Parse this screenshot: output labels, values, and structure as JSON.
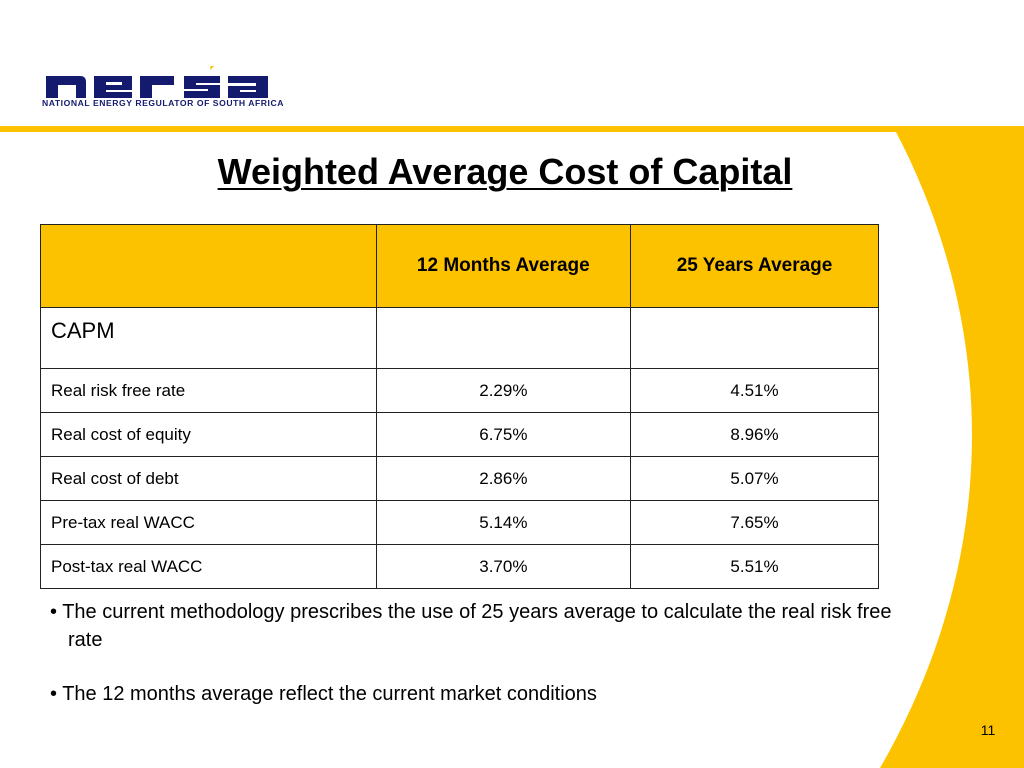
{
  "brand": {
    "logo_word": "nersa",
    "tagline": "NATIONAL ENERGY REGULATOR OF SOUTH AFRICA",
    "navy": "#141a6e",
    "yellow": "#fcc200",
    "flame": "#f7c600"
  },
  "slide": {
    "title": "Weighted Average Cost of Capital",
    "page_number": "11"
  },
  "table": {
    "headers": [
      "",
      "12 Months Average",
      "25 Years Average"
    ],
    "section_label": "CAPM",
    "rows": [
      {
        "label": "Real risk free rate",
        "m12": "2.29%",
        "y25": "4.51%"
      },
      {
        "label": "Real cost of equity",
        "m12": "6.75%",
        "y25": "8.96%"
      },
      {
        "label": "Real cost of debt",
        "m12": "2.86%",
        "y25": "5.07%"
      },
      {
        "label": "Pre-tax real WACC",
        "m12": "5.14%",
        "y25": "7.65%"
      },
      {
        "label": "Post-tax real WACC",
        "m12": "3.70%",
        "y25": "5.51%"
      }
    ]
  },
  "bullets": [
    "• The current methodology prescribes the use of 25 years average to calculate the real risk free rate",
    "• The 12 months average reflect the current market conditions"
  ]
}
